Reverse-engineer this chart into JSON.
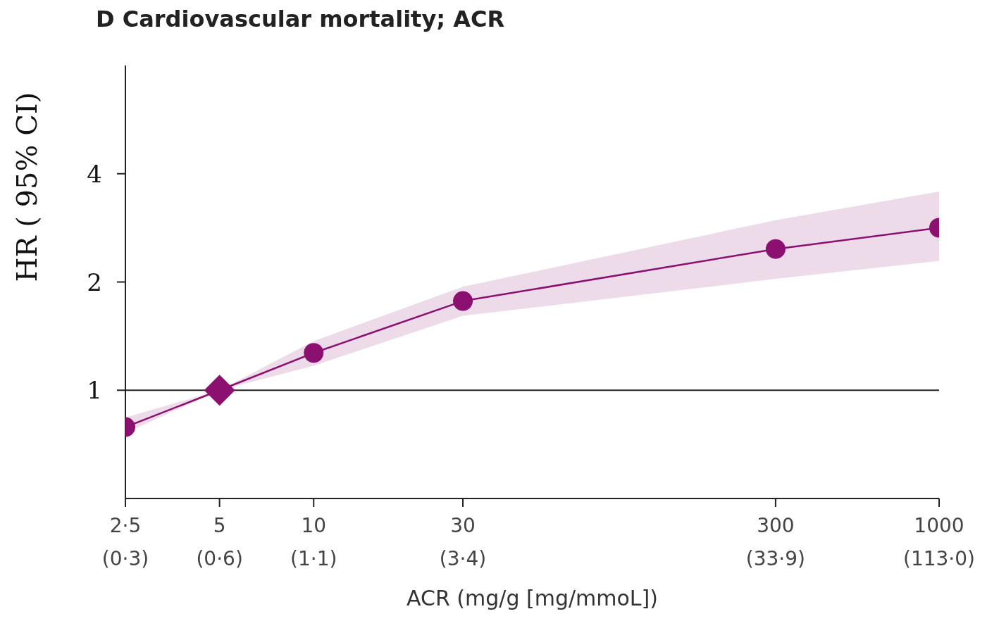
{
  "chart_data": {
    "type": "line",
    "title": "D Cardiovascular mortality; ACR",
    "xlabel": "ACR (mg/g [mg/mmoL])",
    "ylabel": "HR ( 95% CI)",
    "x": [
      2.5,
      5,
      10,
      30,
      300,
      1000
    ],
    "series": [
      {
        "color": "#8b1070",
        "marker": "none",
        "values": [
          0.79,
          1,
          1.27,
          1.77,
          2.47,
          2.83
        ],
        "lower": [
          0.76,
          1,
          1.17,
          1.61,
          2.04,
          2.29
        ],
        "upper": [
          0.84,
          1,
          1.37,
          1.94,
          2.97,
          3.57
        ]
      },
      {
        "type": "scatter",
        "color": "#8b1070",
        "marker": "circle",
        "x": [
          2.5,
          10,
          30,
          300,
          1000
        ],
        "values": [
          0.79,
          1.27,
          1.77,
          2.47,
          2.83
        ]
      },
      {
        "type": "scatter",
        "color": "#8b1070",
        "marker": "diamond",
        "x": [
          5
        ],
        "values": [
          1
        ]
      }
    ],
    "log": "xy",
    "xlim": [
      2.5,
      1000
    ],
    "ylim": [
      0.5,
      8
    ],
    "xticks": [
      {
        "value": 2.5,
        "label": "2·5"
      },
      5,
      10,
      30,
      300,
      1000
    ],
    "annotations": [
      "(0·3)",
      "(0·6)",
      "(1·1)",
      "(3·4)",
      "(33·9)",
      "(113·0)"
    ],
    "yticks": [
      1,
      2,
      4
    ],
    "ref_lines": [
      {
        "axis": "y",
        "value": 1,
        "color": "#222222"
      }
    ],
    "grid": false,
    "legend": false
  }
}
